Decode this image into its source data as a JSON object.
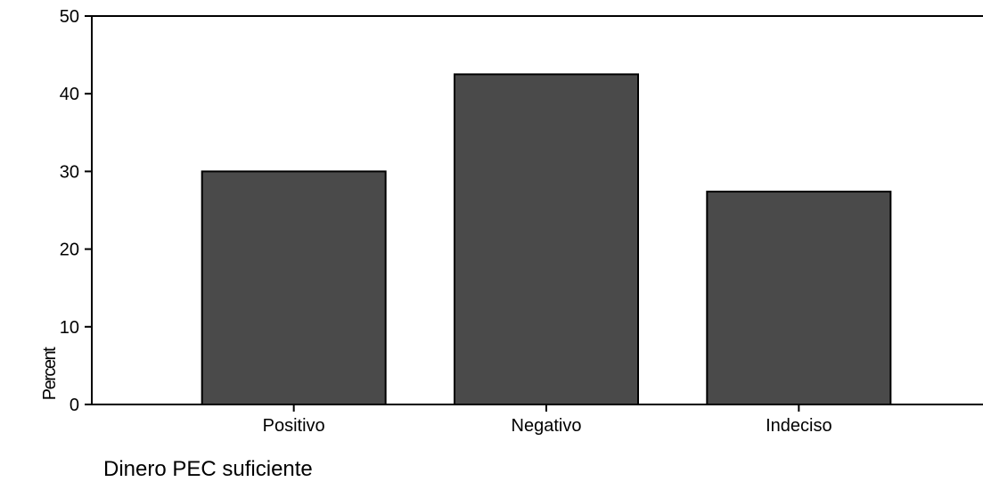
{
  "chart_data": {
    "type": "bar",
    "title": "",
    "xlabel": "Dinero PEC suficiente",
    "ylabel": "Percent",
    "categories": [
      "Positivo",
      "Negativo",
      "Indeciso"
    ],
    "values": [
      30.0,
      42.5,
      27.4
    ],
    "ylim": [
      0,
      50
    ],
    "yticks": [
      0,
      10,
      20,
      30,
      40,
      50
    ],
    "grid": false,
    "legend": "none",
    "colors": {
      "bar_fill": "#4a4a4a",
      "bar_stroke": "#000000",
      "axis": "#000000"
    }
  }
}
